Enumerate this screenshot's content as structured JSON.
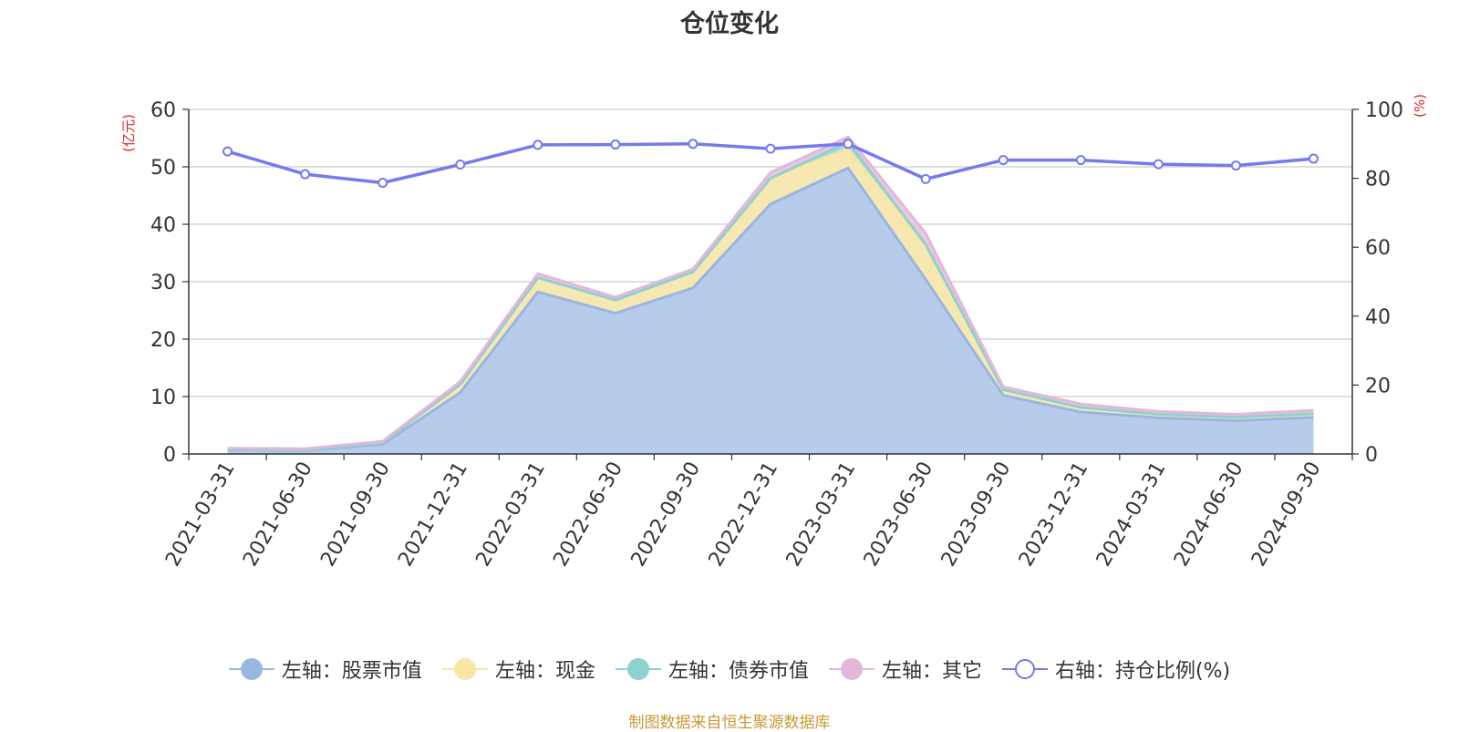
{
  "chart_data": {
    "type": "area",
    "title": "仓位变化",
    "left_axis_label": "(亿元)",
    "right_axis_label": "(%)",
    "left_ylim": [
      0,
      60
    ],
    "left_ticks": [
      "0",
      "10",
      "20",
      "30",
      "40",
      "50",
      "60"
    ],
    "right_ylim": [
      0,
      100
    ],
    "right_ticks": [
      "0",
      "20",
      "40",
      "60",
      "80",
      "100"
    ],
    "categories": [
      "2021-03-31",
      "2021-06-30",
      "2021-09-30",
      "2021-12-31",
      "2022-03-31",
      "2022-06-30",
      "2022-09-30",
      "2022-12-31",
      "2023-03-31",
      "2023-06-30",
      "2023-09-30",
      "2023-12-31",
      "2024-03-31",
      "2024-06-30",
      "2024-09-30"
    ],
    "stacked_series": [
      {
        "name": "左轴：股票市值",
        "color": "#9ab6e0",
        "fill": "#b7cceb",
        "values": [
          0.7,
          0.6,
          1.7,
          10.7,
          28.2,
          24.5,
          28.9,
          43.5,
          49.8,
          30.4,
          10.2,
          7.3,
          6.3,
          5.8,
          6.4
        ]
      },
      {
        "name": "左轴：现金",
        "color": "#f7e6a4",
        "fill": "#f7e8b1",
        "values": [
          0.1,
          0.1,
          0.3,
          1.4,
          2.5,
          2.3,
          2.8,
          4.5,
          3.3,
          5.6,
          1.0,
          0.8,
          0.6,
          0.6,
          0.6
        ]
      },
      {
        "name": "左轴：债券市值",
        "color": "#8fd0d1",
        "fill": "#a5dbdc",
        "values": [
          0,
          0,
          0,
          0,
          0,
          0,
          0,
          0,
          1.2,
          0.5,
          0,
          0,
          0,
          0,
          0
        ]
      },
      {
        "name": "左轴：其它",
        "color": "#e5b6da",
        "fill": "#ecc8e3",
        "values": [
          0.2,
          0.2,
          0.2,
          0.5,
          0.7,
          0.5,
          0.5,
          1.0,
          0.9,
          1.9,
          0.5,
          0.6,
          0.5,
          0.5,
          0.6
        ]
      }
    ],
    "line_series": {
      "name": "右轴：持仓比例(%)",
      "color": "#7779ef",
      "axis": "right",
      "values": [
        87.8,
        81.2,
        78.7,
        84.0,
        89.7,
        89.8,
        90.0,
        88.6,
        90.0,
        79.8,
        85.3,
        85.3,
        84.1,
        83.7,
        85.7
      ]
    },
    "grid": true,
    "legend_position": "bottom"
  },
  "source_text": "制图数据来自恒生聚源数据库"
}
